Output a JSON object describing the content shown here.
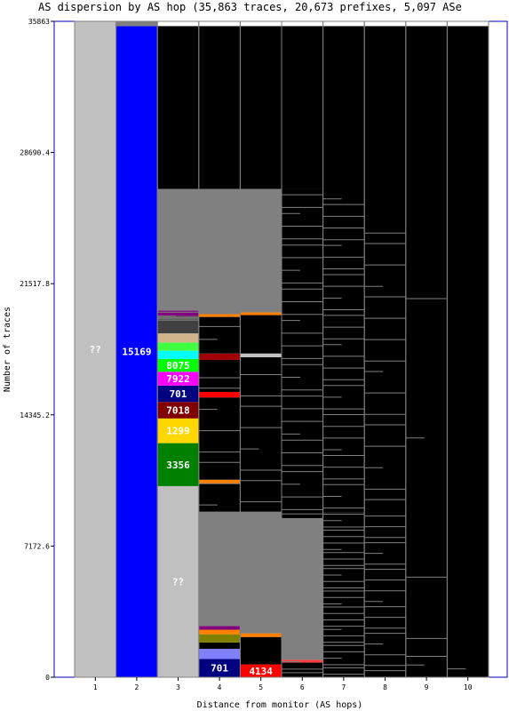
{
  "chart_data": {
    "type": "bar",
    "title": "AS dispersion by AS hop (35,863 traces, 20,673 prefixes, 5,097 ASe",
    "xlabel": "Distance from monitor (AS hops)",
    "ylabel": "Number of traces",
    "ylim": [
      0,
      35863
    ],
    "y_ticks": [
      "0",
      "7172.6",
      "14345.2",
      "21517.8",
      "28690.4",
      "35863"
    ],
    "categories": [
      "1",
      "2",
      "3",
      "4",
      "5",
      "6",
      "7",
      "8",
      "9",
      "10"
    ],
    "colors": {
      "plot_bg": "#000000",
      "frame": "#0000c0",
      "unknown": "#c0c0c0",
      "other": "#808080"
    },
    "stacks": [
      {
        "hop": "1",
        "segments": [
          {
            "label": "??",
            "from": 0,
            "to": 35863,
            "color": "#c0c0c0"
          }
        ]
      },
      {
        "hop": "2",
        "segments": [
          {
            "label": "15169",
            "from": 0,
            "to": 35600,
            "color": "#0000ff"
          },
          {
            "label": "",
            "from": 35600,
            "to": 35863,
            "color": "#808080"
          }
        ]
      },
      {
        "hop": "3",
        "segments": [
          {
            "label": "??",
            "from": 0,
            "to": 10450,
            "color": "#c0c0c0"
          },
          {
            "label": "3356",
            "from": 10450,
            "to": 12800,
            "color": "#008000"
          },
          {
            "label": "1299",
            "from": 12800,
            "to": 14150,
            "color": "#ffd700"
          },
          {
            "label": "7018",
            "from": 14150,
            "to": 15050,
            "color": "#800000"
          },
          {
            "label": "701",
            "from": 15050,
            "to": 15950,
            "color": "#000080"
          },
          {
            "label": "7922",
            "from": 15950,
            "to": 16700,
            "color": "#ff00ff"
          },
          {
            "label": "8075",
            "from": 16700,
            "to": 17400,
            "color": "#00ff00"
          },
          {
            "label": "",
            "from": 17400,
            "to": 17850,
            "color": "#00ffff"
          },
          {
            "label": "",
            "from": 17850,
            "to": 18300,
            "color": "#40ff40"
          },
          {
            "label": "",
            "from": 18300,
            "to": 18800,
            "color": "#d2b48c"
          },
          {
            "label": "",
            "from": 18800,
            "to": 19500,
            "color": "#404040"
          },
          {
            "label": "",
            "from": 19500,
            "to": 19750,
            "color": "#606060"
          },
          {
            "label": "",
            "from": 19750,
            "to": 20050,
            "color": "#800080"
          },
          {
            "label": "",
            "from": 20050,
            "to": 26700,
            "color": "#808080"
          },
          {
            "label": "",
            "from": 26700,
            "to": 35600,
            "color": "#000000"
          }
        ]
      },
      {
        "hop": "4",
        "segments": [
          {
            "label": "701",
            "from": 0,
            "to": 1000,
            "color": "#000080"
          },
          {
            "label": "",
            "from": 1000,
            "to": 1550,
            "color": "#8080ff"
          },
          {
            "label": "",
            "from": 1550,
            "to": 1900,
            "color": "#000000"
          },
          {
            "label": "",
            "from": 1900,
            "to": 2350,
            "color": "#808000"
          },
          {
            "label": "",
            "from": 2350,
            "to": 2600,
            "color": "#ff8000"
          },
          {
            "label": "",
            "from": 2600,
            "to": 2800,
            "color": "#800080"
          },
          {
            "label": "",
            "from": 2800,
            "to": 9050,
            "color": "#808080"
          },
          {
            "label": "",
            "from": 9050,
            "to": 10600,
            "color": "#000000"
          },
          {
            "label": "",
            "from": 10600,
            "to": 10800,
            "color": "#ff8000"
          },
          {
            "label": "",
            "from": 10800,
            "to": 15300,
            "color": "#000000"
          },
          {
            "label": "",
            "from": 15300,
            "to": 15600,
            "color": "#ff0000"
          },
          {
            "label": "",
            "from": 15600,
            "to": 17350,
            "color": "#000000"
          },
          {
            "label": "",
            "from": 17350,
            "to": 17700,
            "color": "#a00000"
          },
          {
            "label": "",
            "from": 17700,
            "to": 19700,
            "color": "#000000"
          },
          {
            "label": "",
            "from": 19700,
            "to": 19900,
            "color": "#ff8000"
          },
          {
            "label": "",
            "from": 19900,
            "to": 26700,
            "color": "#808080"
          },
          {
            "label": "",
            "from": 26700,
            "to": 35600,
            "color": "#000000"
          }
        ]
      },
      {
        "hop": "5",
        "segments": [
          {
            "label": "4134",
            "from": 0,
            "to": 700,
            "color": "#ff0000"
          },
          {
            "label": "",
            "from": 700,
            "to": 2200,
            "color": "#000000"
          },
          {
            "label": "",
            "from": 2200,
            "to": 2400,
            "color": "#ff8000"
          },
          {
            "label": "",
            "from": 2400,
            "to": 9050,
            "color": "#808080"
          },
          {
            "label": "",
            "from": 9050,
            "to": 17500,
            "color": "#000000"
          },
          {
            "label": "",
            "from": 17500,
            "to": 17700,
            "color": "#c0c0c0"
          },
          {
            "label": "",
            "from": 17700,
            "to": 19800,
            "color": "#000000"
          },
          {
            "label": "",
            "from": 19800,
            "to": 19950,
            "color": "#ff8000"
          },
          {
            "label": "",
            "from": 19950,
            "to": 26700,
            "color": "#808080"
          },
          {
            "label": "",
            "from": 26700,
            "to": 35600,
            "color": "#000000"
          }
        ]
      },
      {
        "hop": "6",
        "segments": [
          {
            "label": "",
            "from": 0,
            "to": 800,
            "color": "#000000"
          },
          {
            "label": "",
            "from": 800,
            "to": 950,
            "color": "#ff4040"
          },
          {
            "label": "",
            "from": 950,
            "to": 8700,
            "color": "#808080"
          },
          {
            "label": "",
            "from": 8700,
            "to": 26700,
            "color": "#000000"
          },
          {
            "label": "",
            "from": 26700,
            "to": 35600,
            "color": "#000000"
          }
        ]
      },
      {
        "hop": "7",
        "segments": [
          {
            "label": "",
            "from": 0,
            "to": 9000,
            "color": "#000000"
          },
          {
            "label": "",
            "from": 9000,
            "to": 35600,
            "color": "#000000"
          }
        ]
      },
      {
        "hop": "8",
        "segments": [
          {
            "label": "",
            "from": 0,
            "to": 35600,
            "color": "#000000"
          }
        ]
      },
      {
        "hop": "9",
        "segments": [
          {
            "label": "",
            "from": 0,
            "to": 35600,
            "color": "#000000"
          }
        ]
      },
      {
        "hop": "10",
        "segments": [
          {
            "label": "",
            "from": 0,
            "to": 35600,
            "color": "#000000"
          }
        ]
      }
    ],
    "stripe_bands": [
      {
        "hop": "3",
        "from": 19500,
        "to": 23500,
        "count": 22
      },
      {
        "hop": "4",
        "from": 2800,
        "to": 5000,
        "count": 26
      },
      {
        "hop": "4",
        "from": 18300,
        "to": 26700,
        "count": 14
      },
      {
        "hop": "4",
        "from": 9050,
        "to": 17000,
        "count": 8
      },
      {
        "hop": "5",
        "from": 2400,
        "to": 6000,
        "count": 18
      },
      {
        "hop": "5",
        "from": 19950,
        "to": 26700,
        "count": 24
      },
      {
        "hop": "5",
        "from": 9050,
        "to": 17000,
        "count": 8
      },
      {
        "hop": "6",
        "from": 0,
        "to": 9000,
        "count": 26
      },
      {
        "hop": "6",
        "from": 9000,
        "to": 26700,
        "count": 30
      },
      {
        "hop": "7",
        "from": 0,
        "to": 9000,
        "count": 30
      },
      {
        "hop": "7",
        "from": 9000,
        "to": 26500,
        "count": 32
      },
      {
        "hop": "8",
        "from": 0,
        "to": 9000,
        "count": 18
      },
      {
        "hop": "8",
        "from": 9000,
        "to": 25000,
        "count": 16
      },
      {
        "hop": "9",
        "from": 0,
        "to": 2500,
        "count": 3
      },
      {
        "hop": "9",
        "from": 2500,
        "to": 22000,
        "count": 3
      },
      {
        "hop": "10",
        "from": 0,
        "to": 1000,
        "count": 1
      }
    ]
  }
}
